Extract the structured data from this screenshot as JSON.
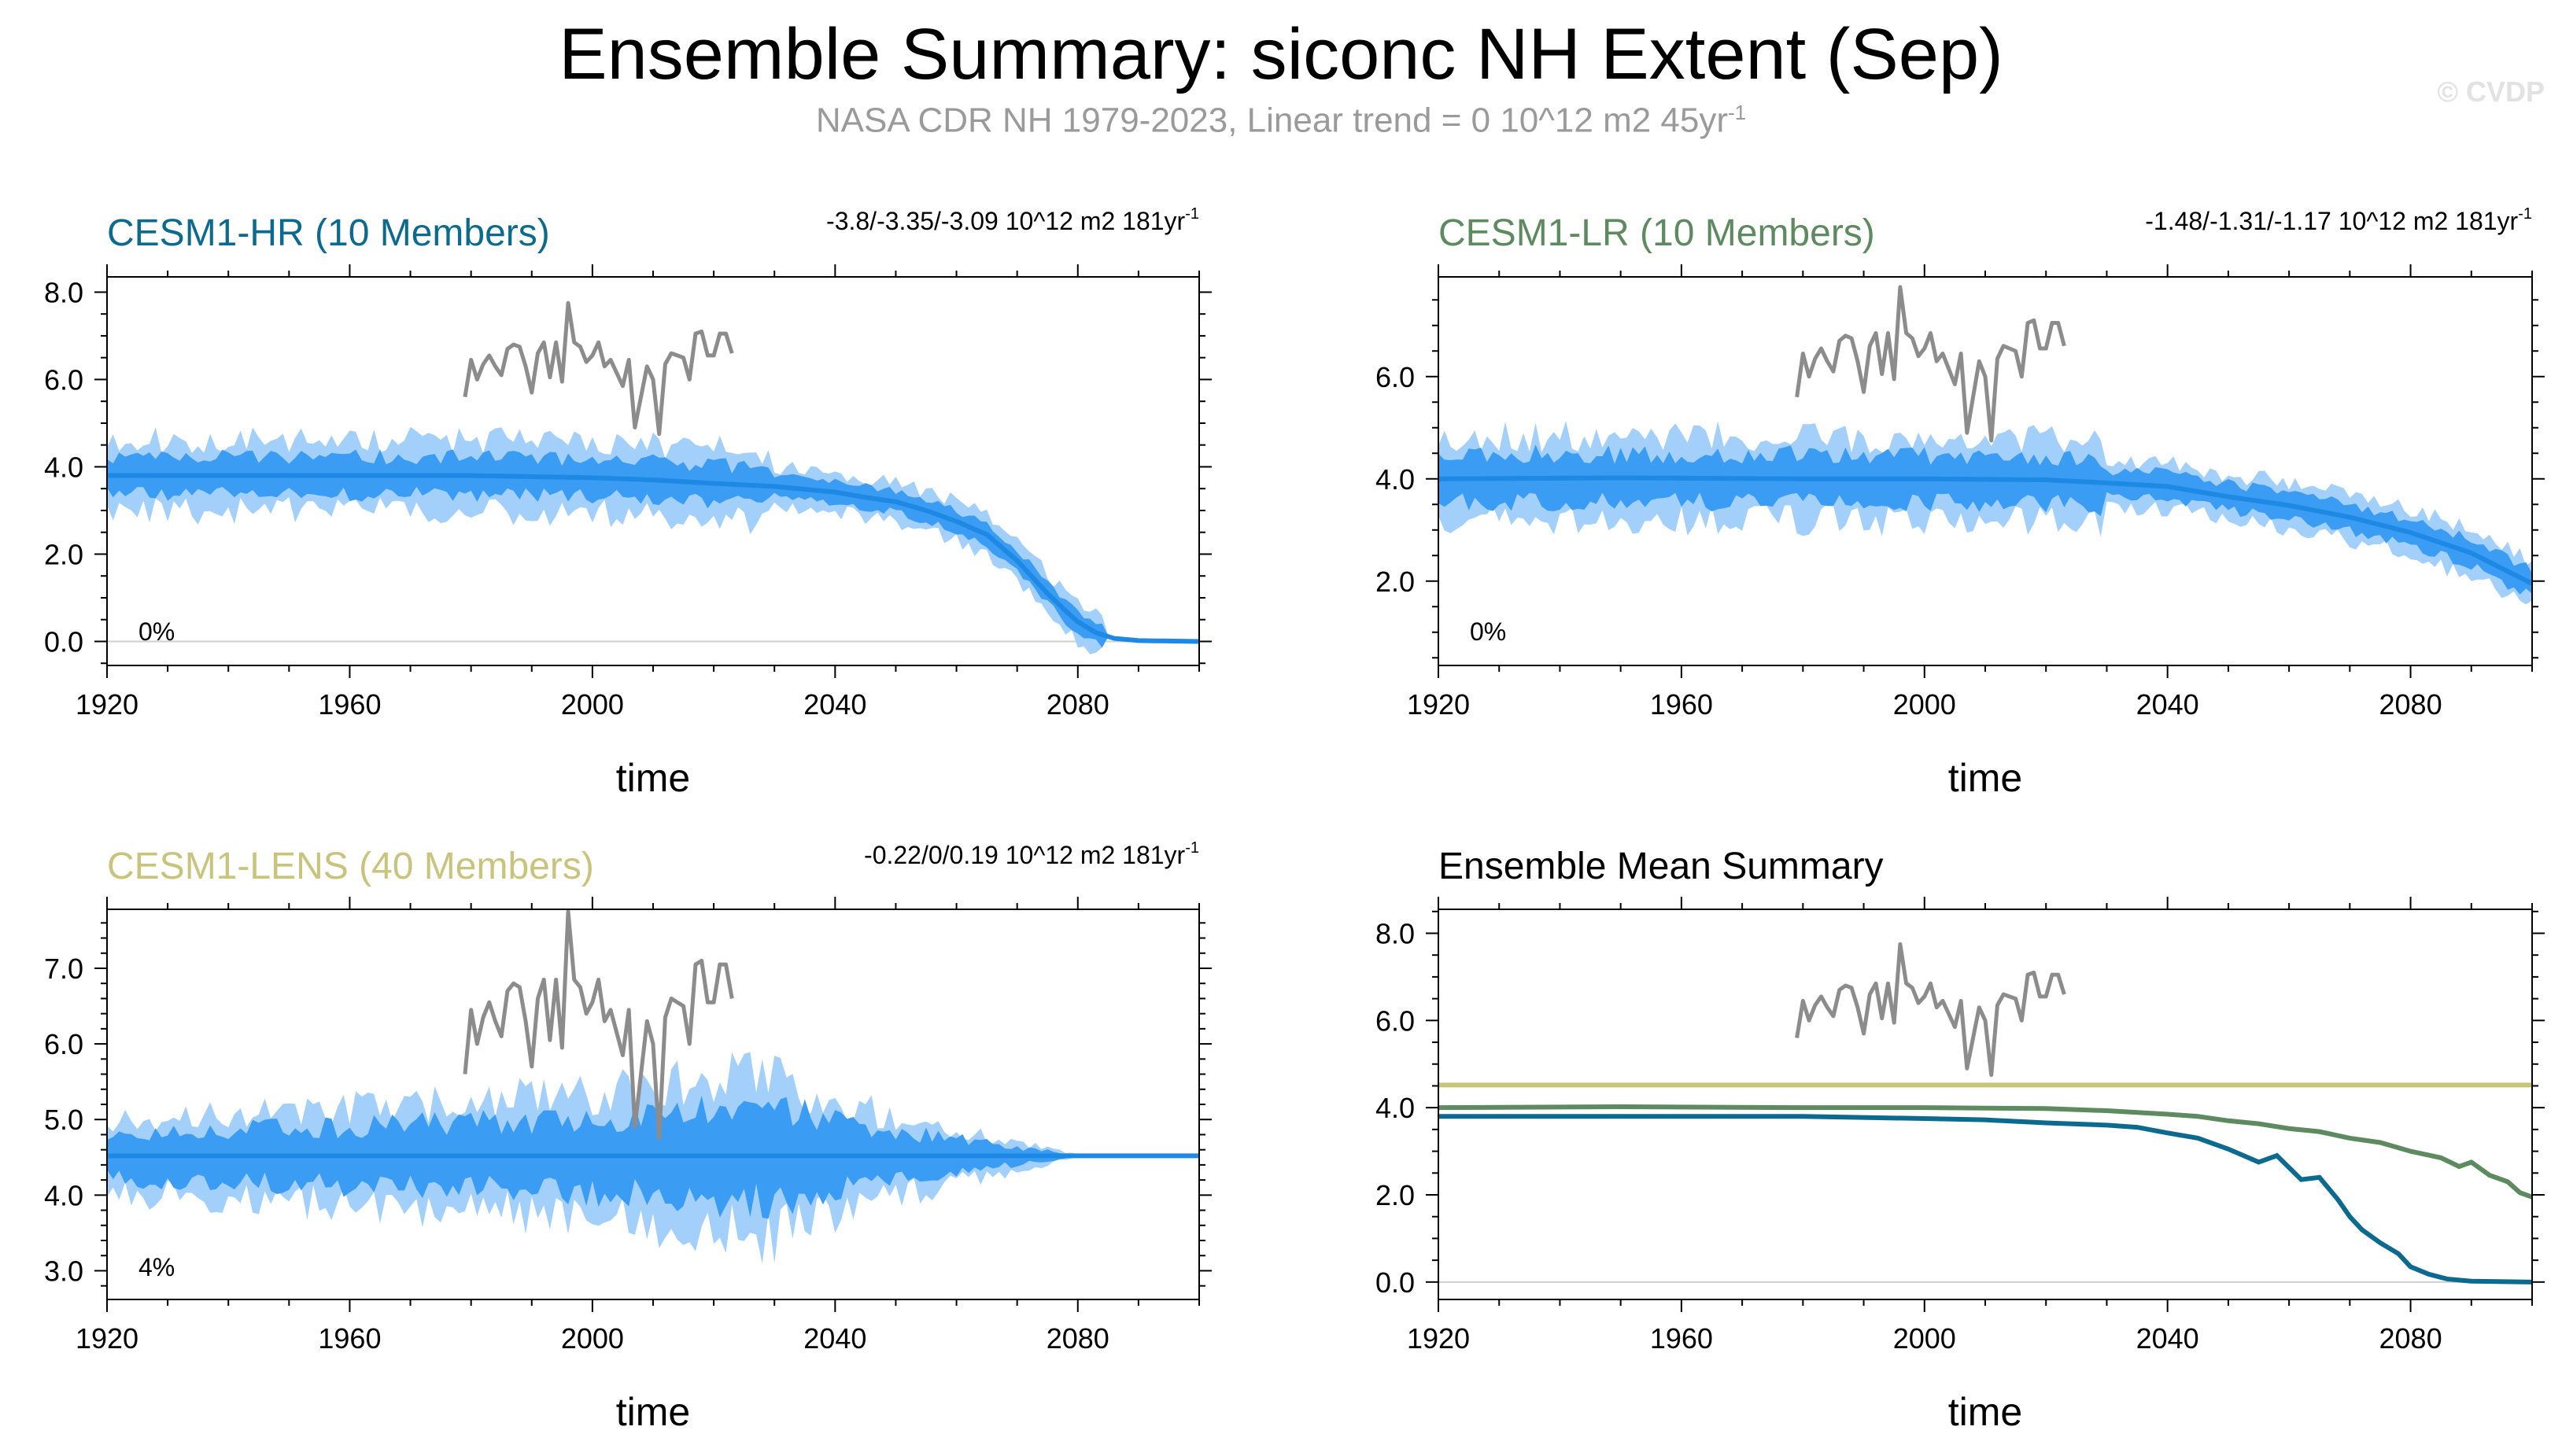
{
  "title": "Ensemble Summary: siconc NH Extent (Sep)",
  "subtitle": {
    "text": "NASA CDR NH 1979-2023, Linear trend = 0 10^12 m2 45yr",
    "exponent": "-1"
  },
  "credit": "© CVDP",
  "colors": {
    "hr": "#0d6a8f",
    "lr": "#5d8a5f",
    "lens": "#c9c47c",
    "band_light": "#a3d0fb",
    "band_dark": "#3a9cf2",
    "band_line": "#1e88e5",
    "obs": "#8c8c8c",
    "axis": "#000000",
    "zero_line": "#cfcfcf"
  },
  "chart_data": [
    {
      "id": "hr",
      "type": "area",
      "title": "CESM1-HR (10 Members)",
      "title_color": "#0d6a8f",
      "trend_text": "-3.8/-3.35/-3.09 10^12 m2 181yr",
      "trend_exp": "-1",
      "xlabel": "time",
      "xlim": [
        1920,
        2100
      ],
      "ylim": [
        -0.55,
        8.35
      ],
      "yticks": [
        "8.0",
        "6.0",
        "4.0",
        "2.0",
        "0.0"
      ],
      "yticks_values": [
        8,
        6,
        4,
        2,
        0
      ],
      "xticks": [
        "1920",
        "1960",
        "2000",
        "2040",
        "2080"
      ],
      "xticks_values": [
        1920,
        1960,
        2000,
        2040,
        2080
      ],
      "percent_label": "0%",
      "mean": {
        "x": [
          1920,
          1940,
          1960,
          1980,
          2000,
          2010,
          2020,
          2030,
          2040,
          2045,
          2050,
          2055,
          2060,
          2065,
          2070,
          2072,
          2075,
          2078,
          2080,
          2083,
          2086,
          2090,
          2100
        ],
        "y": [
          3.8,
          3.8,
          3.8,
          3.8,
          3.75,
          3.7,
          3.62,
          3.55,
          3.42,
          3.3,
          3.2,
          3.0,
          2.75,
          2.45,
          1.85,
          1.55,
          1.1,
          0.7,
          0.45,
          0.2,
          0.07,
          0.02,
          0.0
        ]
      },
      "spread_light": 0.9,
      "spread_dark": 0.5,
      "seed": 11
    },
    {
      "id": "lr",
      "type": "area",
      "title": "CESM1-LR (10 Members)",
      "title_color": "#5d8a5f",
      "trend_text": "-1.48/-1.31/-1.17 10^12 m2 181yr",
      "trend_exp": "-1",
      "xlabel": "time",
      "xlim": [
        1920,
        2100
      ],
      "ylim": [
        0.35,
        7.95
      ],
      "yticks": [
        "6.0",
        "4.0",
        "2.0"
      ],
      "yticks_values": [
        6,
        4,
        2
      ],
      "xticks": [
        "1920",
        "1960",
        "2000",
        "2080",
        "2040"
      ],
      "xticks_values": [
        1920,
        1960,
        2000,
        2080,
        2040
      ],
      "percent_label": "0%",
      "mean": {
        "x": [
          1920,
          1950,
          1980,
          2000,
          2020,
          2030,
          2040,
          2050,
          2060,
          2070,
          2080,
          2090,
          2095,
          2100
        ],
        "y": [
          4.0,
          4.02,
          4.0,
          4.0,
          3.98,
          3.92,
          3.85,
          3.65,
          3.48,
          3.25,
          2.95,
          2.55,
          2.25,
          1.95
        ]
      },
      "spread_light": 0.9,
      "spread_dark": 0.55,
      "seed": 23
    },
    {
      "id": "lens",
      "type": "area",
      "title": "CESM1-LENS (40 Members)",
      "title_color": "#c9c47c",
      "trend_text": "-0.22/0/0.19 10^12 m2 181yr",
      "trend_exp": "-1",
      "xlabel": "time",
      "xlim": [
        1920,
        2100
      ],
      "ylim": [
        2.62,
        7.78
      ],
      "yticks": [
        "7.0",
        "6.0",
        "5.0",
        "4.0",
        "3.0"
      ],
      "yticks_values": [
        7,
        6,
        5,
        4,
        3
      ],
      "xticks": [
        "1920",
        "1960",
        "2000",
        "2040",
        "2080"
      ],
      "xticks_values": [
        1920,
        1960,
        2000,
        2040,
        2080
      ],
      "percent_label": "4%",
      "mean": {
        "x": [
          1920,
          2100
        ],
        "y": [
          4.52,
          4.52
        ]
      },
      "spread_light": 0.55,
      "spread_dark": 0.35,
      "seed": 37
    },
    {
      "id": "summary",
      "type": "line",
      "title": "Ensemble Mean Summary",
      "title_color": "#000000",
      "xlabel": "time",
      "xlim": [
        1920,
        2100
      ],
      "ylim": [
        -0.4,
        8.55
      ],
      "yticks": [
        "8.0",
        "6.0",
        "4.0",
        "2.0",
        "0.0"
      ],
      "yticks_values": [
        8,
        6,
        4,
        2,
        0
      ],
      "xticks": [
        "1920",
        "1960",
        "2000",
        "2040",
        "2080"
      ],
      "xticks_values": [
        1920,
        1960,
        2000,
        2040,
        2080
      ],
      "series": [
        {
          "name": "CESM1-LENS",
          "color": "#c9c47c",
          "x": [
            1920,
            2100
          ],
          "y": [
            4.52,
            4.52
          ]
        },
        {
          "name": "CESM1-LR",
          "color": "#5d8a5f",
          "x": [
            1920,
            1950,
            1980,
            2000,
            2020,
            2030,
            2040,
            2045,
            2050,
            2055,
            2060,
            2065,
            2070,
            2075,
            2080,
            2085,
            2088,
            2090,
            2093,
            2096,
            2098,
            2100
          ],
          "y": [
            4.0,
            4.02,
            4.0,
            4.0,
            3.98,
            3.93,
            3.85,
            3.8,
            3.7,
            3.63,
            3.52,
            3.45,
            3.3,
            3.2,
            3.0,
            2.85,
            2.65,
            2.75,
            2.45,
            2.3,
            2.05,
            1.95
          ]
        },
        {
          "name": "CESM1-HR",
          "color": "#0d6a8f",
          "x": [
            1920,
            1940,
            1960,
            1980,
            2000,
            2010,
            2020,
            2030,
            2035,
            2040,
            2045,
            2050,
            2055,
            2058,
            2062,
            2065,
            2068,
            2070,
            2072,
            2075,
            2078,
            2080,
            2083,
            2086,
            2090,
            2100
          ],
          "y": [
            3.8,
            3.8,
            3.8,
            3.8,
            3.75,
            3.72,
            3.65,
            3.6,
            3.55,
            3.42,
            3.3,
            3.05,
            2.75,
            2.9,
            2.35,
            2.4,
            1.9,
            1.5,
            1.2,
            0.9,
            0.65,
            0.35,
            0.18,
            0.07,
            0.02,
            0.0
          ]
        }
      ]
    }
  ],
  "observations": {
    "name": "NASA CDR NH",
    "x": [
      1979,
      1980,
      1981,
      1982,
      1983,
      1984,
      1985,
      1986,
      1987,
      1988,
      1989,
      1990,
      1991,
      1992,
      1993,
      1994,
      1995,
      1996,
      1997,
      1998,
      1999,
      2000,
      2001,
      2002,
      2003,
      2004,
      2005,
      2006,
      2007,
      2008,
      2009,
      2010,
      2011,
      2012,
      2013,
      2014,
      2015,
      2016,
      2017,
      2018,
      2019,
      2020,
      2021,
      2022,
      2023
    ],
    "y": [
      5.6,
      6.45,
      6.0,
      6.35,
      6.55,
      6.3,
      6.1,
      6.7,
      6.8,
      6.75,
      6.3,
      5.7,
      6.6,
      6.85,
      6.05,
      6.85,
      5.95,
      7.75,
      6.85,
      6.75,
      6.4,
      6.55,
      6.85,
      6.3,
      6.45,
      6.15,
      5.85,
      6.45,
      4.9,
      5.6,
      6.3,
      6.0,
      4.75,
      6.35,
      6.6,
      6.55,
      6.5,
      6.0,
      7.05,
      7.1,
      6.55,
      6.55,
      7.05,
      7.05,
      6.6
    ]
  }
}
